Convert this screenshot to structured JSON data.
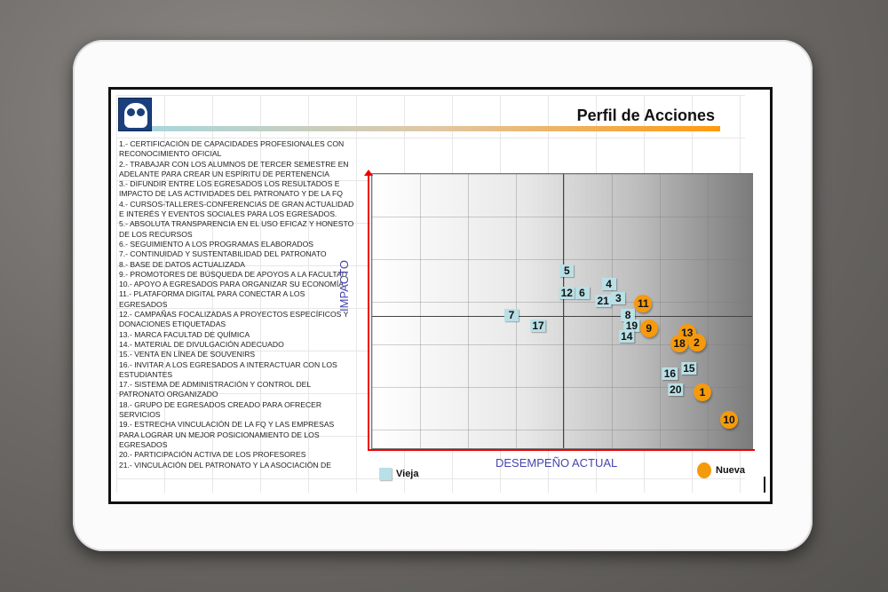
{
  "header": {
    "title": "Perfil de Acciones"
  },
  "actions": [
    "1.- CERTIFICACIÓN DE CAPACIDADES PROFESIONALES CON RECONOCIMIENTO OFICIAL",
    "2.- TRABAJAR CON LOS ALUMNOS DE TERCER SEMESTRE EN ADELANTE PARA CREAR UN ESPÍRITU DE PERTENENCIA",
    "3.- DIFUNDIR ENTRE LOS EGRESADOS LOS RESULTADOS E IMPACTO DE LAS ACTIVIDADES DEL PATRONATO Y DE LA FQ",
    "4.- CURSOS-TALLERES-CONFERENCIAS DE GRAN ACTUALIDAD E INTERÉS Y EVENTOS SOCIALES PARA LOS EGRESADOS.",
    "5.- ABSOLUTA TRANSPARENCIA EN EL USO EFICAZ Y HONESTO DE LOS RECURSOS",
    "6.- SEGUIMIENTO A LOS PROGRAMAS ELABORADOS",
    "7.- CONTINUIDAD Y SUSTENTABILIDAD DEL PATRONATO",
    "8.- BASE DE DATOS ACTUALIZADA",
    "9.- PROMOTORES DE BÚSQUEDA DE APOYOS A LA FACULTAD",
    "10.- APOYO A EGRESADOS PARA ORGANIZAR SU ECONOMÍA",
    "11.- PLATAFORMA DIGITAL PARA CONECTAR A LOS EGRESADOS",
    "12.- CAMPAÑAS FOCALIZADAS A PROYECTOS ESPECÍFICOS Y DONACIONES ETIQUETADAS",
    "13.- MARCA FACULTAD DE QUÍMICA",
    "14.- MATERIAL DE DIVULGACIÓN ADECUADO",
    "15.- VENTA EN LÍNEA DE SOUVENIRS",
    "16.- INVITAR A LOS EGRESADOS A INTERACTUAR CON LOS ESTUDIANTES",
    "17.- SISTEMA DE ADMINISTRACIÓN Y CONTROL DEL PATRONATO ORGANIZADO",
    "18.- GRUPO DE EGRESADOS CREADO PARA OFRECER SERVICIOS",
    "19.- ESTRECHA VINCULACIÓN DE LA FQ Y LAS EMPRESAS PARA LOGRAR UN MEJOR POSICIONAMIENTO DE LOS EGRESADOS",
    "20.- PARTICIPACIÓN ACTIVA DE LOS PROFESORES",
    "21.- VINCULACIÓN DEL PATRONATO Y LA ASOCIACIÓN DE"
  ],
  "chart_data": {
    "type": "scatter",
    "title": "Perfil de Acciones",
    "xlabel": "DESEMPEÑO ACTUAL",
    "ylabel": "IMPACTO",
    "xlim": [
      0,
      10
    ],
    "ylim": [
      0,
      10
    ],
    "quadrant_dividers": {
      "x": 5,
      "y": 4.9
    },
    "legend": {
      "placement": "bottom",
      "entries": [
        "Vieja",
        "Nueva"
      ]
    },
    "colors": {
      "Vieja": "#b9e0e6",
      "Nueva": "#f59a0d"
    },
    "series": [
      {
        "name": "Vieja",
        "points": [
          {
            "label": "5",
            "x": 5.1,
            "y": 6.5
          },
          {
            "label": "4",
            "x": 6.2,
            "y": 6.0
          },
          {
            "label": "12",
            "x": 5.1,
            "y": 5.7
          },
          {
            "label": "6",
            "x": 5.5,
            "y": 5.7
          },
          {
            "label": "21",
            "x": 6.05,
            "y": 5.4
          },
          {
            "label": "3",
            "x": 6.45,
            "y": 5.5
          },
          {
            "label": "7",
            "x": 3.65,
            "y": 4.9
          },
          {
            "label": "17",
            "x": 4.35,
            "y": 4.5
          },
          {
            "label": "8",
            "x": 6.7,
            "y": 4.9
          },
          {
            "label": "19",
            "x": 6.8,
            "y": 4.5
          },
          {
            "label": "14",
            "x": 6.67,
            "y": 4.1
          },
          {
            "label": "15",
            "x": 8.3,
            "y": 2.95
          },
          {
            "label": "16",
            "x": 7.8,
            "y": 2.75
          },
          {
            "label": "20",
            "x": 7.95,
            "y": 2.2
          }
        ]
      },
      {
        "name": "Nueva",
        "points": [
          {
            "label": "11",
            "x": 7.1,
            "y": 5.3
          },
          {
            "label": "9",
            "x": 7.25,
            "y": 4.4
          },
          {
            "label": "13",
            "x": 8.25,
            "y": 4.25
          },
          {
            "label": "18",
            "x": 8.05,
            "y": 3.85
          },
          {
            "label": "2",
            "x": 8.5,
            "y": 3.9
          },
          {
            "label": "1",
            "x": 8.65,
            "y": 2.1
          },
          {
            "label": "10",
            "x": 9.35,
            "y": 1.1
          }
        ]
      }
    ]
  }
}
